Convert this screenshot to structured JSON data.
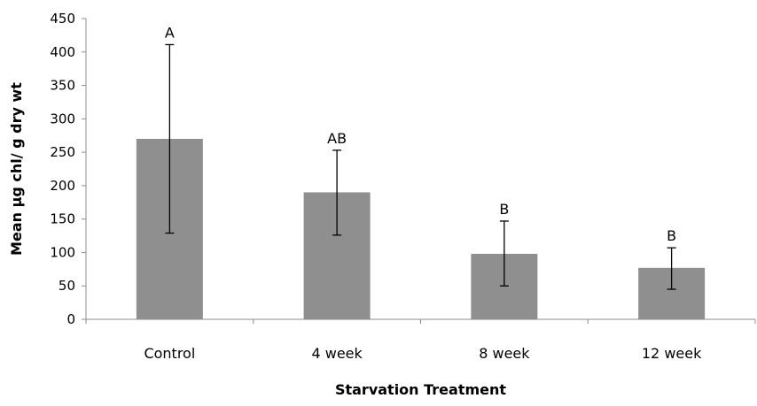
{
  "chart_data": {
    "type": "bar",
    "title": "",
    "xlabel": "Starvation Treatment",
    "ylabel": "Mean µg chl/ g dry wt",
    "categories": [
      "Control",
      "4 week",
      "8 week",
      "12 week"
    ],
    "values": [
      270,
      190,
      98,
      77
    ],
    "error_low": [
      129,
      126,
      50,
      45
    ],
    "error_high": [
      411,
      253,
      147,
      107
    ],
    "significance_labels": [
      "A",
      "AB",
      "B",
      "B"
    ],
    "ylim": [
      0,
      450
    ],
    "yticks": [
      "0",
      "50",
      "100",
      "150",
      "200",
      "250",
      "300",
      "350",
      "400",
      "450"
    ],
    "grid": false,
    "bar_color": "#8f8f8f",
    "error_bar_color": "#000000",
    "axis_color": "#8c8c8c"
  }
}
